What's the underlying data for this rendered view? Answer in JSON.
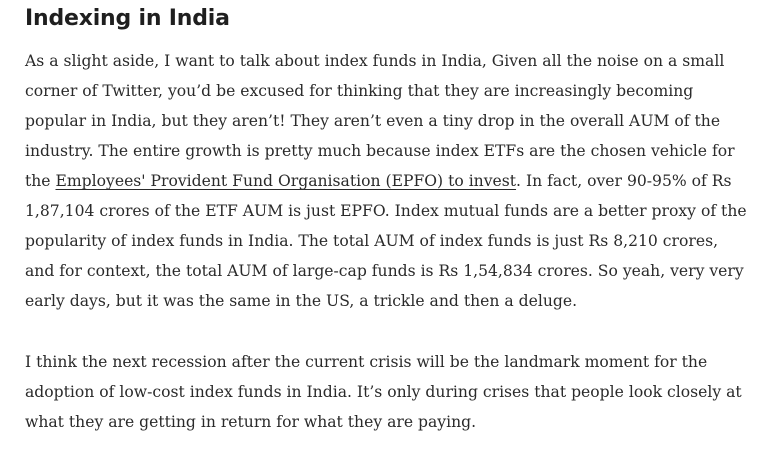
{
  "article": {
    "heading": "Indexing in India",
    "paragraph1": {
      "before_link": "As a slight aside, I want to talk about index funds in India, Given all the noise on a small corner of Twitter, you’d be excused for thinking that they are increasingly becoming popular in India, but they aren’t! They aren’t even a tiny drop in the overall AUM of the industry. The entire growth is pretty much because index ETFs are the chosen vehicle for the ",
      "link_text": "Employees' Provident Fund Organisation (EPFO) to invest",
      "after_link": ". In fact, over 90-95% of Rs 1,87,104 crores of the ETF AUM is just EPFO. Index mutual funds are a better proxy of the popularity of index funds in India. The total AUM of index funds is just Rs 8,210 crores, and for context, the total AUM of large-cap funds is Rs 1,54,834 crores. So yeah, very very early days, but it was the same in the US, a trickle and then a deluge."
    },
    "paragraph2": "I think the next recession after the current crisis will be the landmark moment for the adoption of low-cost index funds in India. It’s only during crises that people look closely at what they are getting in return for what they are paying."
  }
}
